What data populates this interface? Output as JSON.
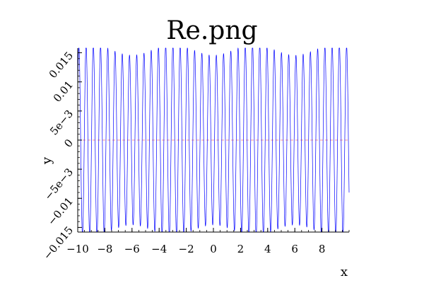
{
  "chart_data": {
    "type": "line",
    "title": "Re.png",
    "xlabel": "x",
    "ylabel": "y",
    "xlim": [
      -10,
      10
    ],
    "ylim": [
      -0.0158,
      0.0158
    ],
    "x_ticks": [
      {
        "value": -10,
        "label": "−10"
      },
      {
        "value": -8,
        "label": "−8"
      },
      {
        "value": -6,
        "label": "−6"
      },
      {
        "value": -4,
        "label": "−4"
      },
      {
        "value": -2,
        "label": "−2"
      },
      {
        "value": 0,
        "label": "0"
      },
      {
        "value": 2,
        "label": "2"
      },
      {
        "value": 4,
        "label": "4"
      },
      {
        "value": 6,
        "label": "6"
      },
      {
        "value": 8,
        "label": "8"
      }
    ],
    "y_ticks": [
      {
        "value": 0.015,
        "label": "0.015"
      },
      {
        "value": 0.01,
        "label": "0.01"
      },
      {
        "value": 0.005,
        "label": "5e−3"
      },
      {
        "value": 0,
        "label": "0"
      },
      {
        "value": -0.005,
        "label": "−5e−3"
      },
      {
        "value": -0.01,
        "label": "−0.01"
      },
      {
        "value": -0.015,
        "label": "−0.015"
      }
    ],
    "grid": false,
    "series": [
      {
        "color": "#0000ff",
        "function": "oscillation",
        "amplitude": 0.0155,
        "cycles_over_range": 37.5,
        "samples": 4000
      }
    ],
    "reference_lines": [
      {
        "y": 0,
        "color": "#ff9999",
        "style": "dashed"
      }
    ]
  }
}
